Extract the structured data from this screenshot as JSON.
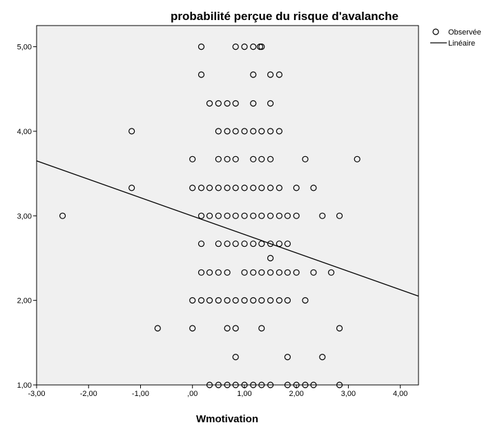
{
  "chart_data": {
    "type": "scatter",
    "title": "probabilité perçue du risque d'avalanche",
    "xlabel": "Wmotivation",
    "ylabel": "",
    "xlim": [
      -3,
      4.35
    ],
    "ylim": [
      1,
      5.25
    ],
    "x_ticks": [
      {
        "value": -3,
        "label": "-3,00"
      },
      {
        "value": -2,
        "label": "-2,00"
      },
      {
        "value": -1,
        "label": "-1,00"
      },
      {
        "value": 0,
        "label": ",00"
      },
      {
        "value": 1,
        "label": "1,00"
      },
      {
        "value": 2,
        "label": "2,00"
      },
      {
        "value": 3,
        "label": "3,00"
      },
      {
        "value": 4,
        "label": "4,00"
      }
    ],
    "y_ticks": [
      {
        "value": 1,
        "label": "1,00"
      },
      {
        "value": 2,
        "label": "2,00"
      },
      {
        "value": 3,
        "label": "3,00"
      },
      {
        "value": 4,
        "label": "4,00"
      },
      {
        "value": 5,
        "label": "5,00"
      }
    ],
    "grid": false,
    "legend_position": "top-right",
    "background_color": "#f0f0f0",
    "point_color": "#000000",
    "line_color": "#000000",
    "series": [
      {
        "name": "Observée",
        "kind": "scatter",
        "points": [
          [
            0.17,
            5.0
          ],
          [
            0.83,
            5.0
          ],
          [
            1.0,
            5.0
          ],
          [
            1.17,
            5.0
          ],
          [
            1.3,
            5.0
          ],
          [
            1.33,
            5.0
          ],
          [
            0.17,
            4.67
          ],
          [
            1.17,
            4.67
          ],
          [
            1.5,
            4.67
          ],
          [
            1.67,
            4.67
          ],
          [
            0.33,
            4.33
          ],
          [
            0.5,
            4.33
          ],
          [
            0.67,
            4.33
          ],
          [
            0.83,
            4.33
          ],
          [
            1.17,
            4.33
          ],
          [
            1.5,
            4.33
          ],
          [
            -1.17,
            4.0
          ],
          [
            0.5,
            4.0
          ],
          [
            0.67,
            4.0
          ],
          [
            0.83,
            4.0
          ],
          [
            1.0,
            4.0
          ],
          [
            1.17,
            4.0
          ],
          [
            1.33,
            4.0
          ],
          [
            1.5,
            4.0
          ],
          [
            1.67,
            4.0
          ],
          [
            0.0,
            3.67
          ],
          [
            0.5,
            3.67
          ],
          [
            0.67,
            3.67
          ],
          [
            0.83,
            3.67
          ],
          [
            1.17,
            3.67
          ],
          [
            1.33,
            3.67
          ],
          [
            1.5,
            3.67
          ],
          [
            2.17,
            3.67
          ],
          [
            3.17,
            3.67
          ],
          [
            -1.17,
            3.33
          ],
          [
            0.0,
            3.33
          ],
          [
            0.17,
            3.33
          ],
          [
            0.33,
            3.33
          ],
          [
            0.5,
            3.33
          ],
          [
            0.67,
            3.33
          ],
          [
            0.83,
            3.33
          ],
          [
            1.0,
            3.33
          ],
          [
            1.17,
            3.33
          ],
          [
            1.33,
            3.33
          ],
          [
            1.5,
            3.33
          ],
          [
            1.67,
            3.33
          ],
          [
            2.0,
            3.33
          ],
          [
            2.33,
            3.33
          ],
          [
            -2.5,
            3.0
          ],
          [
            0.17,
            3.0
          ],
          [
            0.33,
            3.0
          ],
          [
            0.5,
            3.0
          ],
          [
            0.67,
            3.0
          ],
          [
            0.83,
            3.0
          ],
          [
            1.0,
            3.0
          ],
          [
            1.17,
            3.0
          ],
          [
            1.33,
            3.0
          ],
          [
            1.5,
            3.0
          ],
          [
            1.67,
            3.0
          ],
          [
            1.83,
            3.0
          ],
          [
            2.0,
            3.0
          ],
          [
            2.5,
            3.0
          ],
          [
            2.83,
            3.0
          ],
          [
            0.17,
            2.67
          ],
          [
            0.5,
            2.67
          ],
          [
            0.67,
            2.67
          ],
          [
            0.83,
            2.67
          ],
          [
            1.0,
            2.67
          ],
          [
            1.17,
            2.67
          ],
          [
            1.33,
            2.67
          ],
          [
            1.5,
            2.67
          ],
          [
            1.67,
            2.67
          ],
          [
            1.83,
            2.67
          ],
          [
            1.5,
            2.5
          ],
          [
            0.17,
            2.33
          ],
          [
            0.33,
            2.33
          ],
          [
            0.5,
            2.33
          ],
          [
            0.67,
            2.33
          ],
          [
            1.0,
            2.33
          ],
          [
            1.17,
            2.33
          ],
          [
            1.33,
            2.33
          ],
          [
            1.5,
            2.33
          ],
          [
            1.67,
            2.33
          ],
          [
            1.83,
            2.33
          ],
          [
            2.0,
            2.33
          ],
          [
            2.33,
            2.33
          ],
          [
            2.67,
            2.33
          ],
          [
            0.0,
            2.0
          ],
          [
            0.17,
            2.0
          ],
          [
            0.33,
            2.0
          ],
          [
            0.5,
            2.0
          ],
          [
            0.67,
            2.0
          ],
          [
            0.83,
            2.0
          ],
          [
            1.0,
            2.0
          ],
          [
            1.17,
            2.0
          ],
          [
            1.33,
            2.0
          ],
          [
            1.5,
            2.0
          ],
          [
            1.67,
            2.0
          ],
          [
            1.83,
            2.0
          ],
          [
            2.17,
            2.0
          ],
          [
            -0.67,
            1.67
          ],
          [
            0.0,
            1.67
          ],
          [
            0.67,
            1.67
          ],
          [
            0.83,
            1.67
          ],
          [
            1.33,
            1.67
          ],
          [
            2.83,
            1.67
          ],
          [
            0.83,
            1.33
          ],
          [
            1.83,
            1.33
          ],
          [
            2.5,
            1.33
          ],
          [
            0.33,
            1.0
          ],
          [
            0.5,
            1.0
          ],
          [
            0.67,
            1.0
          ],
          [
            0.83,
            1.0
          ],
          [
            1.0,
            1.0
          ],
          [
            1.17,
            1.0
          ],
          [
            1.33,
            1.0
          ],
          [
            1.5,
            1.0
          ],
          [
            1.83,
            1.0
          ],
          [
            2.0,
            1.0
          ],
          [
            2.17,
            1.0
          ],
          [
            2.33,
            1.0
          ],
          [
            2.83,
            1.0
          ]
        ]
      },
      {
        "name": "Linéaire",
        "kind": "line",
        "points": [
          [
            -3.0,
            3.65
          ],
          [
            4.35,
            2.05
          ]
        ]
      }
    ]
  }
}
